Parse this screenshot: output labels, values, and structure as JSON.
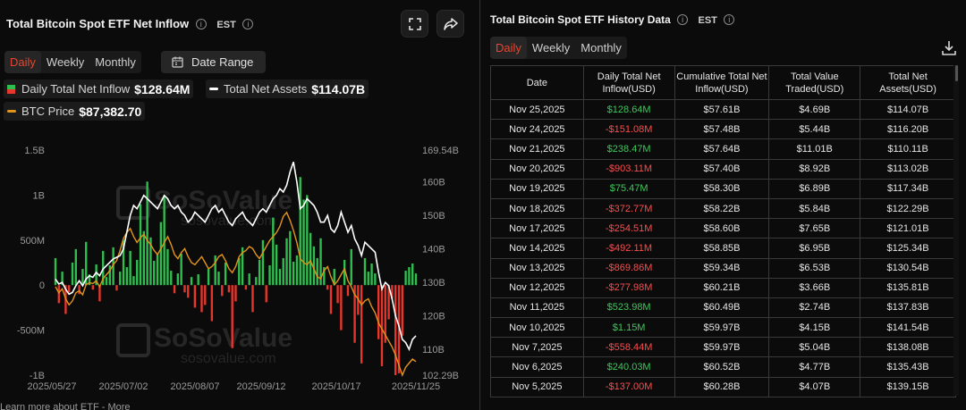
{
  "left": {
    "title": "Total Bitcoin Spot ETF Net Inflow",
    "timezone": "EST",
    "tabs": [
      "Daily",
      "Weekly",
      "Monthly"
    ],
    "active_tab": "Daily",
    "date_range_label": "Date Range",
    "legend": {
      "inflow_label": "Daily Total Net Inflow",
      "inflow_value": "$128.64M",
      "assets_label": "Total Net Assets",
      "assets_value": "$114.07B",
      "price_label": "BTC Price",
      "price_value": "$87,382.70"
    },
    "watermark": {
      "brand": "SoSoValue",
      "site": "sosovalue.com"
    },
    "bottom_link": "Learn more about ETF - More"
  },
  "colors": {
    "positive": "#2fbf4f",
    "negative": "#e8362c",
    "assets_line": "#ffffff",
    "price_line": "#e3941b",
    "active_tab": "#e8452f"
  },
  "chart_data": {
    "type": "bar",
    "x_tick_labels": [
      "2025/05/27",
      "2025/07/02",
      "2025/08/07",
      "2025/09/12",
      "2025/10/17",
      "2025/11/25"
    ],
    "left_axis": {
      "ticks": [
        "1.5B",
        "1B",
        "500M",
        "0",
        "-500M",
        "-1B"
      ],
      "range_millions": [
        -1000,
        1500
      ]
    },
    "right_axis": {
      "ticks": [
        "169.54B",
        "160B",
        "150B",
        "140B",
        "130B",
        "120B",
        "110B",
        "102.29B"
      ],
      "range_billions": [
        102.29,
        169.54
      ]
    },
    "series": [
      {
        "name": "Daily Total Net Inflow",
        "unit": "millions USD",
        "values": [
          300,
          -200,
          150,
          -320,
          -80,
          250,
          400,
          -100,
          180,
          480,
          120,
          -50,
          230,
          -180,
          380,
          90,
          220,
          420,
          -60,
          150,
          500,
          200,
          380,
          100,
          280,
          900,
          600,
          1150,
          530,
          270,
          350,
          700,
          1000,
          400,
          160,
          -90,
          130,
          350,
          -80,
          -140,
          90,
          -250,
          120,
          -300,
          -220,
          180,
          -400,
          330,
          150,
          -120,
          250,
          -80,
          -700,
          -180,
          300,
          420,
          -50,
          130,
          -300,
          90,
          280,
          500,
          -190,
          220,
          750,
          450,
          180,
          300,
          520,
          600,
          260,
          330,
          1200,
          950,
          1000,
          580,
          430,
          300,
          520,
          200,
          -50,
          -320,
          180,
          -200,
          -500,
          280,
          -120,
          400,
          -640,
          -330,
          -870,
          300,
          150,
          240,
          130,
          -600,
          -900,
          -640,
          -380,
          -150,
          -1000,
          -980,
          -560,
          160,
          200,
          240,
          130
        ]
      },
      {
        "name": "Total Net Assets",
        "unit": "billions USD",
        "values": [
          131,
          129.5,
          130,
          128,
          126.5,
          127,
          129,
          130.5,
          129,
          131,
          132,
          131.5,
          133,
          132,
          134,
          135,
          136,
          137,
          137.5,
          138,
          140,
          145,
          150,
          153,
          152,
          154,
          156,
          155,
          154,
          153,
          152,
          154,
          156,
          155,
          153,
          152,
          153,
          151,
          150,
          148,
          149,
          151,
          150,
          149,
          148,
          150,
          152,
          153,
          151,
          152,
          150,
          148,
          147,
          149,
          150,
          151,
          149,
          148,
          147,
          149,
          151,
          152,
          151,
          153,
          155,
          156,
          158,
          157,
          159,
          163,
          166,
          160,
          152,
          153,
          155,
          154,
          153,
          151,
          148,
          148,
          150,
          146,
          145,
          147,
          151,
          148,
          145,
          147,
          143,
          141,
          138,
          142,
          141,
          140,
          139,
          133,
          128,
          130,
          129,
          125,
          120,
          117,
          113,
          112,
          110,
          113,
          114.07
        ]
      },
      {
        "name": "BTC Price",
        "unit": "relative line",
        "values": [
          106000,
          104500,
          105500,
          103000,
          101500,
          102500,
          104500,
          105000,
          104000,
          106500,
          107000,
          106800,
          107500,
          106000,
          108000,
          109000,
          110000,
          111500,
          112500,
          115000,
          118000,
          119500,
          120500,
          118500,
          117000,
          118200,
          119000,
          117500,
          116500,
          115000,
          114000,
          115500,
          117000,
          118500,
          116500,
          114000,
          113000,
          114500,
          115500,
          113500,
          112000,
          111500,
          112500,
          113500,
          112000,
          110500,
          111000,
          112000,
          113500,
          114000,
          112500,
          110500,
          109500,
          111000,
          113500,
          114500,
          115000,
          116000,
          115500,
          114000,
          113000,
          114500,
          116000,
          117500,
          118500,
          119500,
          121000,
          123500,
          124500,
          122500,
          120000,
          117000,
          113000,
          112000,
          111500,
          112500,
          110500,
          108500,
          108000,
          110000,
          111000,
          108500,
          106500,
          107500,
          109000,
          110500,
          107500,
          106000,
          104000,
          103000,
          101500,
          102500,
          103000,
          101000,
          99500,
          97000,
          95500,
          94000,
          92500,
          91000,
          89000,
          86500,
          84000,
          86000,
          87000,
          88000,
          87382.7
        ]
      }
    ],
    "grid": false,
    "legend_position": "top-left"
  },
  "right": {
    "title": "Total Bitcoin Spot ETF History Data",
    "timezone": "EST",
    "tabs": [
      "Daily",
      "Weekly",
      "Monthly"
    ],
    "active_tab": "Daily",
    "columns": [
      "Date",
      "Daily Total Net Inflow(USD)",
      "Cumulative Total Net Inflow(USD)",
      "Total Value Traded(USD)",
      "Total Net Assets(USD)"
    ],
    "rows": [
      {
        "date": "Nov 25,2025",
        "inflow": "$128.64M",
        "dir": "pos",
        "cumulative": "$57.61B",
        "traded": "$4.69B",
        "assets": "$114.07B"
      },
      {
        "date": "Nov 24,2025",
        "inflow": "-$151.08M",
        "dir": "neg",
        "cumulative": "$57.48B",
        "traded": "$5.44B",
        "assets": "$116.20B"
      },
      {
        "date": "Nov 21,2025",
        "inflow": "$238.47M",
        "dir": "pos",
        "cumulative": "$57.64B",
        "traded": "$11.01B",
        "assets": "$110.11B"
      },
      {
        "date": "Nov 20,2025",
        "inflow": "-$903.11M",
        "dir": "neg",
        "cumulative": "$57.40B",
        "traded": "$8.92B",
        "assets": "$113.02B"
      },
      {
        "date": "Nov 19,2025",
        "inflow": "$75.47M",
        "dir": "pos",
        "cumulative": "$58.30B",
        "traded": "$6.89B",
        "assets": "$117.34B"
      },
      {
        "date": "Nov 18,2025",
        "inflow": "-$372.77M",
        "dir": "neg",
        "cumulative": "$58.22B",
        "traded": "$5.84B",
        "assets": "$122.29B"
      },
      {
        "date": "Nov 17,2025",
        "inflow": "-$254.51M",
        "dir": "neg",
        "cumulative": "$58.60B",
        "traded": "$7.65B",
        "assets": "$121.01B"
      },
      {
        "date": "Nov 14,2025",
        "inflow": "-$492.11M",
        "dir": "neg",
        "cumulative": "$58.85B",
        "traded": "$6.95B",
        "assets": "$125.34B"
      },
      {
        "date": "Nov 13,2025",
        "inflow": "-$869.86M",
        "dir": "neg",
        "cumulative": "$59.34B",
        "traded": "$6.53B",
        "assets": "$130.54B"
      },
      {
        "date": "Nov 12,2025",
        "inflow": "-$277.98M",
        "dir": "neg",
        "cumulative": "$60.21B",
        "traded": "$3.66B",
        "assets": "$135.81B"
      },
      {
        "date": "Nov 11,2025",
        "inflow": "$523.98M",
        "dir": "pos",
        "cumulative": "$60.49B",
        "traded": "$2.74B",
        "assets": "$137.83B"
      },
      {
        "date": "Nov 10,2025",
        "inflow": "$1.15M",
        "dir": "pos",
        "cumulative": "$59.97B",
        "traded": "$4.15B",
        "assets": "$141.54B"
      },
      {
        "date": "Nov 7,2025",
        "inflow": "-$558.44M",
        "dir": "neg",
        "cumulative": "$59.97B",
        "traded": "$5.04B",
        "assets": "$138.08B"
      },
      {
        "date": "Nov 6,2025",
        "inflow": "$240.03M",
        "dir": "pos",
        "cumulative": "$60.52B",
        "traded": "$4.77B",
        "assets": "$135.43B"
      },
      {
        "date": "Nov 5,2025",
        "inflow": "-$137.00M",
        "dir": "neg",
        "cumulative": "$60.28B",
        "traded": "$4.07B",
        "assets": "$139.15B"
      }
    ]
  }
}
